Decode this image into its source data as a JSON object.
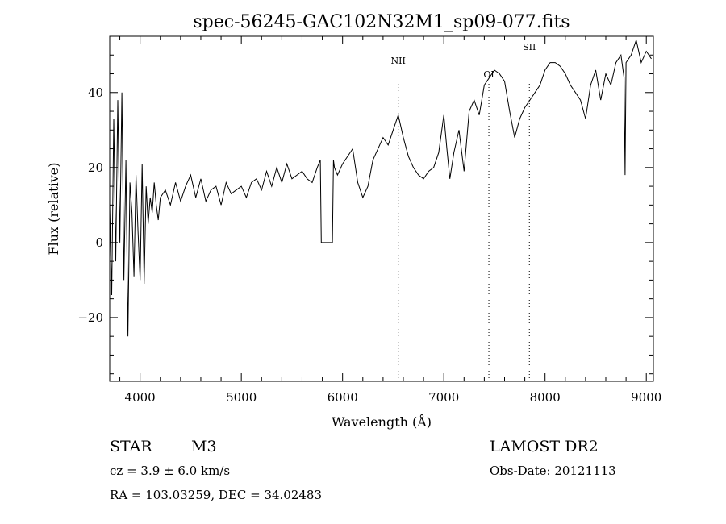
{
  "chart_data": {
    "type": "line",
    "title": "spec-56245-GAC102N32M1_sp09-077.fits",
    "xlabel": "Wavelength (Å)",
    "ylabel": "Flux (relative)",
    "xlim": [
      3700,
      9070
    ],
    "ylim": [
      -37,
      55
    ],
    "xticks": [
      4000,
      5000,
      6000,
      7000,
      8000,
      9000
    ],
    "xtick_labels": [
      "4000",
      "5000",
      "6000",
      "7000",
      "8000",
      "9000"
    ],
    "yticks": [
      -20,
      0,
      20,
      40
    ],
    "ytick_labels": [
      "−20",
      "0",
      "20",
      "40"
    ],
    "grid": false,
    "series": [
      {
        "values_x": [
          3700,
          3720,
          3740,
          3760,
          3780,
          3800,
          3820,
          3840,
          3860,
          3880,
          3900,
          3920,
          3940,
          3960,
          3980,
          4000,
          4020,
          4040,
          4060,
          4080,
          4100,
          4120,
          4140,
          4160,
          4180,
          4200,
          4250,
          4300,
          4350,
          4400,
          4450,
          4500,
          4550,
          4600,
          4650,
          4700,
          4750,
          4800,
          4850,
          4900,
          4950,
          5000,
          5050,
          5100,
          5150,
          5200,
          5250,
          5300,
          5350,
          5400,
          5450,
          5500,
          5550,
          5600,
          5650,
          5700,
          5750,
          5780,
          5790,
          5800,
          5850,
          5900,
          5910,
          5920,
          5950,
          6000,
          6050,
          6100,
          6150,
          6200,
          6250,
          6300,
          6350,
          6400,
          6450,
          6500,
          6550,
          6600,
          6650,
          6700,
          6750,
          6800,
          6850,
          6900,
          6950,
          7000,
          7030,
          7060,
          7100,
          7150,
          7200,
          7250,
          7300,
          7350,
          7400,
          7450,
          7500,
          7550,
          7600,
          7650,
          7700,
          7750,
          7800,
          7850,
          7900,
          7950,
          8000,
          8050,
          8100,
          8150,
          8200,
          8250,
          8300,
          8350,
          8400,
          8450,
          8500,
          8550,
          8600,
          8650,
          8700,
          8750,
          8780,
          8790,
          8800,
          8850,
          8900,
          8950,
          9000,
          9050
        ],
        "values": [
          10,
          -14,
          33,
          -5,
          38,
          0,
          40,
          -10,
          22,
          -25,
          16,
          8,
          -9,
          18,
          3,
          -10,
          21,
          -11,
          15,
          5,
          12,
          8,
          16,
          10,
          6,
          12,
          14,
          10,
          16,
          11,
          15,
          18,
          12,
          17,
          11,
          14,
          15,
          10,
          16,
          13,
          14,
          15,
          12,
          16,
          17,
          14,
          19,
          15,
          20,
          16,
          21,
          17,
          18,
          19,
          17,
          16,
          20,
          22,
          0,
          0,
          0,
          0,
          22,
          20,
          18,
          21,
          23,
          25,
          16,
          12,
          15,
          22,
          25,
          28,
          26,
          30,
          34,
          28,
          23,
          20,
          18,
          17,
          19,
          20,
          24,
          34,
          25,
          17,
          24,
          30,
          19,
          35,
          38,
          34,
          42,
          44,
          46,
          45,
          43,
          35,
          28,
          33,
          36,
          38,
          40,
          42,
          46,
          48,
          48,
          47,
          45,
          42,
          40,
          38,
          33,
          42,
          46,
          38,
          45,
          42,
          48,
          50,
          44,
          18,
          48,
          50,
          54,
          48,
          51,
          49
        ]
      }
    ],
    "annotations": [
      {
        "label": "NII",
        "x": 6550
      },
      {
        "label": "OI",
        "x": 7445
      },
      {
        "label": "SII",
        "x": 7845
      }
    ]
  },
  "info": {
    "object_class": "STAR",
    "subclass": "M3",
    "cz": "cz = 3.9 ± 6.0 km/s",
    "coords": "RA = 103.03259, DEC =  34.02483",
    "survey": "LAMOST DR2",
    "obs_date": "Obs-Date: 20121113"
  }
}
